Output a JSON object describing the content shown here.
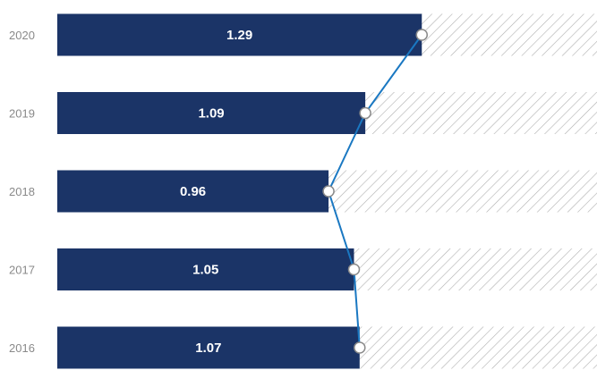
{
  "chart_data": {
    "type": "bar",
    "orientation": "horizontal",
    "categories": [
      "2020",
      "2019",
      "2018",
      "2017",
      "2016"
    ],
    "values": [
      1.29,
      1.09,
      0.96,
      1.05,
      1.07
    ],
    "data_labels": [
      "1.29",
      "1.09",
      "0.96",
      "1.05",
      "1.07"
    ],
    "xlim": [
      0,
      1.91
    ],
    "title": "",
    "xlabel": "",
    "ylabel": "",
    "grid": false,
    "overlay_line": true,
    "colors": {
      "bar": "#1b3467",
      "hatch_background": "#ffffff",
      "hatch_line": "#b0b0b0",
      "trend_line": "#1a78c2",
      "marker_fill": "#ffffff",
      "marker_stroke": "#8a8a8a",
      "tick_text": "#8a8a8a",
      "data_label_text": "#ffffff"
    }
  }
}
